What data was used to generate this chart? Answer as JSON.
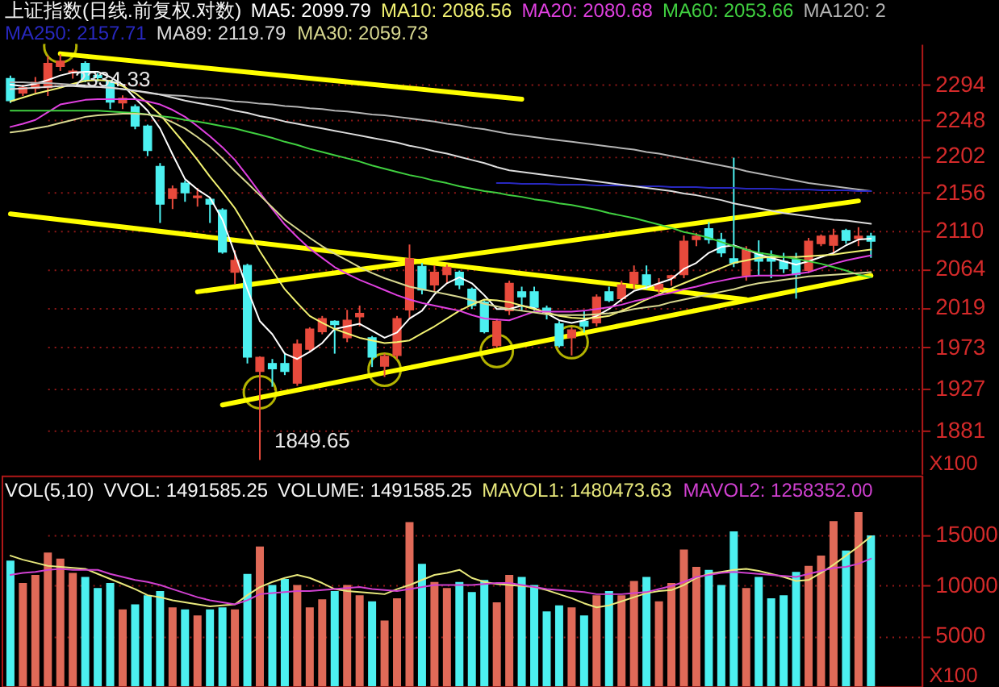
{
  "chart_data": [
    {
      "type": "candlestick",
      "title": "上证指数(日线.前复权.对数)",
      "ylabel": "X100",
      "log": true,
      "grid": "y",
      "legend": "top",
      "tick_labels": "y",
      "ylim": [
        1835,
        2348
      ],
      "yticks": [
        1881,
        1927,
        1973,
        2019,
        2064,
        2110,
        2156,
        2202,
        2248,
        2294
      ],
      "categories": [
        null,
        null,
        null,
        null,
        null,
        null,
        null,
        null,
        null,
        null,
        null,
        null,
        null,
        null,
        null,
        null,
        null,
        null,
        null,
        null,
        null,
        null,
        null,
        null,
        null,
        null,
        null,
        null,
        null,
        null,
        null,
        null,
        null,
        null,
        null,
        null,
        null,
        null,
        null,
        null,
        null,
        null,
        null,
        null,
        null,
        null,
        null,
        null,
        null,
        null,
        null,
        null,
        null,
        null,
        null,
        null,
        null,
        null,
        null,
        null,
        null,
        null,
        null,
        null,
        null,
        null,
        null,
        null,
        null,
        null
      ],
      "ohlc": [
        [
          2302,
          2306,
          2270,
          2273
        ],
        [
          2283,
          2294,
          2279,
          2290
        ],
        [
          2289,
          2304,
          2283,
          2297
        ],
        [
          2290,
          2332,
          2279,
          2322
        ],
        [
          2318,
          2334.33,
          2312,
          2325
        ],
        [
          2310,
          2315,
          2302,
          2312
        ],
        [
          2322,
          2325,
          2297,
          2300
        ],
        [
          2306,
          2309,
          2298,
          2303
        ],
        [
          2298,
          2300,
          2262,
          2271
        ],
        [
          2270,
          2280,
          2262,
          2276
        ],
        [
          2265,
          2268,
          2236,
          2240
        ],
        [
          2240,
          2242,
          2202,
          2209
        ],
        [
          2189,
          2193,
          2119,
          2142
        ],
        [
          2149,
          2165,
          2136,
          2161
        ],
        [
          2168,
          2171,
          2145,
          2156
        ],
        [
          2150,
          2162,
          2139,
          2152
        ],
        [
          2148,
          2150,
          2119,
          2142
        ],
        [
          2135,
          2137,
          2082,
          2084
        ],
        [
          2060,
          2086,
          2046,
          2074
        ],
        [
          2068,
          2070,
          1955,
          1962
        ],
        [
          1946,
          1963,
          1849.65,
          1962
        ],
        [
          1955,
          1960,
          1929,
          1949
        ],
        [
          1955,
          1967,
          1942,
          1946
        ],
        [
          1933,
          1982,
          1930,
          1977
        ],
        [
          1971,
          1996,
          1968,
          1994
        ],
        [
          1991,
          2009,
          1988,
          2006
        ],
        [
          2003,
          2004,
          1966,
          1999
        ],
        [
          1984,
          2016,
          1979,
          2004
        ],
        [
          2008,
          2021,
          1997,
          2012
        ],
        [
          1984,
          1986,
          1951,
          1962
        ],
        [
          1952,
          1966,
          1940,
          1963
        ],
        [
          1964,
          2009,
          1960,
          2006
        ],
        [
          2016,
          2093,
          2006,
          2076
        ],
        [
          2067,
          2071,
          2034,
          2039
        ],
        [
          2045,
          2068,
          2037,
          2060
        ],
        [
          2057,
          2069,
          2047,
          2066
        ],
        [
          2060,
          2062,
          2040,
          2045
        ],
        [
          2040,
          2042,
          2017,
          2021
        ],
        [
          2025,
          2027,
          1989,
          1991
        ],
        [
          1975,
          2006,
          1973,
          2003
        ],
        [
          2015,
          2050,
          2010,
          2047
        ],
        [
          2037,
          2043,
          2015,
          2031
        ],
        [
          2037,
          2043,
          2015,
          2019
        ],
        [
          2018,
          2021,
          2005,
          2013
        ],
        [
          2000,
          2003,
          1973,
          1975
        ],
        [
          1984,
          1996,
          1964,
          1993
        ],
        [
          2003,
          2015,
          1990,
          1997
        ],
        [
          2001,
          2034,
          1997,
          2031
        ],
        [
          2037,
          2043,
          2025,
          2027
        ],
        [
          2029,
          2050,
          2025,
          2045
        ],
        [
          2047,
          2068,
          2040,
          2060
        ],
        [
          2057,
          2068,
          2040,
          2045
        ],
        [
          2040,
          2053,
          2035,
          2046
        ],
        [
          2053,
          2057,
          2044,
          2056
        ],
        [
          2057,
          2104,
          2053,
          2097
        ],
        [
          2099,
          2107,
          2091,
          2103
        ],
        [
          2112,
          2120,
          2094,
          2099
        ],
        [
          2099,
          2107,
          2078,
          2083
        ],
        [
          2076,
          2200,
          2066,
          2071
        ],
        [
          2056,
          2091,
          2050,
          2087
        ],
        [
          2083,
          2098,
          2056,
          2073
        ],
        [
          2079,
          2086,
          2053,
          2073
        ],
        [
          2073,
          2083,
          2059,
          2064
        ],
        [
          2075,
          2083,
          2029,
          2057
        ],
        [
          2062,
          2101,
          2059,
          2097
        ],
        [
          2094,
          2105,
          2091,
          2103
        ],
        [
          2092,
          2112,
          2081,
          2104
        ],
        [
          2110,
          2112,
          2094,
          2098
        ],
        [
          2100,
          2114,
          2091,
          2103
        ],
        [
          2103,
          2107,
          2077,
          2097
        ]
      ],
      "colors": [
        "#4cf0f0",
        "#e84a3c",
        "#e84a3c",
        "#e84a3c",
        "#e84a3c",
        "#e84a3c",
        "#4cf0f0",
        "#4cf0f0",
        "#4cf0f0",
        "#e84a3c",
        "#4cf0f0",
        "#4cf0f0",
        "#4cf0f0",
        "#e84a3c",
        "#4cf0f0",
        "#e84a3c",
        "#4cf0f0",
        "#4cf0f0",
        "#e84a3c",
        "#4cf0f0",
        "#e84a3c",
        "#4cf0f0",
        "#4cf0f0",
        "#e84a3c",
        "#e84a3c",
        "#e84a3c",
        "#4cf0f0",
        "#e84a3c",
        "#e84a3c",
        "#4cf0f0",
        "#e84a3c",
        "#e84a3c",
        "#e84a3c",
        "#4cf0f0",
        "#e84a3c",
        "#e84a3c",
        "#4cf0f0",
        "#4cf0f0",
        "#4cf0f0",
        "#e84a3c",
        "#e84a3c",
        "#4cf0f0",
        "#4cf0f0",
        "#4cf0f0",
        "#4cf0f0",
        "#e84a3c",
        "#4cf0f0",
        "#e84a3c",
        "#4cf0f0",
        "#e84a3c",
        "#e84a3c",
        "#4cf0f0",
        "#e84a3c",
        "#e84a3c",
        "#e84a3c",
        "#e84a3c",
        "#4cf0f0",
        "#4cf0f0",
        "#4cf0f0",
        "#e84a3c",
        "#4cf0f0",
        "#4cf0f0",
        "#4cf0f0",
        "#4cf0f0",
        "#e84a3c",
        "#e84a3c",
        "#e84a3c",
        "#4cf0f0",
        "#e84a3c",
        "#4cf0f0"
      ],
      "value_labels": [
        null,
        null,
        null,
        null,
        "2334.33",
        null,
        null,
        null,
        null,
        null,
        null,
        null,
        null,
        null,
        null,
        null,
        null,
        null,
        null,
        null,
        "1849.65",
        null,
        null,
        null,
        null,
        null,
        null,
        null,
        null,
        null,
        null,
        null,
        null,
        null,
        null,
        null,
        null,
        null,
        null,
        null,
        null,
        null,
        null,
        null,
        null,
        null,
        null,
        null,
        null,
        null,
        null,
        null,
        null,
        null,
        null,
        null,
        null,
        null,
        null,
        null,
        null,
        null,
        null,
        null,
        null,
        null,
        null,
        null,
        null,
        null
      ],
      "series": [
        {
          "name": "MA5: 2099.79",
          "type": "line",
          "color": "#ffffff",
          "values": [
            2294,
            2292,
            2295,
            2300,
            2306,
            2310,
            2311,
            2311,
            2304,
            2294,
            2276,
            2260,
            2237,
            2204,
            2173,
            2160,
            2150,
            2123,
            2082,
            2040,
            2003,
            1988,
            1966,
            1960,
            1968,
            1978,
            1994,
            1997,
            2000,
            1992,
            1984,
            1990,
            2006,
            2015,
            2034,
            2047,
            2054,
            2047,
            2033,
            2017,
            2017,
            2021,
            2018,
            2012,
            2004,
            2001,
            2004,
            2009,
            2017,
            2028,
            2038,
            2042,
            2047,
            2052,
            2064,
            2071,
            2083,
            2090,
            2092,
            2087,
            2081,
            2077,
            2073,
            2069,
            2073,
            2078,
            2083,
            2092,
            2099,
            2100
          ]
        },
        {
          "name": "MA10: 2086.56",
          "type": "line",
          "color": "#f2f272",
          "values": [
            2272,
            2277,
            2282,
            2286,
            2290,
            2295,
            2299,
            2300,
            2299,
            2292,
            2283,
            2270,
            2255,
            2236,
            2217,
            2197,
            2176,
            2157,
            2137,
            2112,
            2085,
            2062,
            2040,
            2024,
            2009,
            2001,
            1994,
            1989,
            1984,
            1981,
            1978,
            1979,
            1981,
            1989,
            1997,
            2006,
            2015,
            2022,
            2028,
            2027,
            2025,
            2021,
            2017,
            2013,
            2009,
            2007,
            2006,
            2007,
            2009,
            2015,
            2021,
            2028,
            2034,
            2041,
            2047,
            2053,
            2059,
            2065,
            2071,
            2074,
            2077,
            2078,
            2078,
            2078,
            2079,
            2080,
            2081,
            2083,
            2085,
            2087
          ]
        },
        {
          "name": "MA20: 2080.68",
          "type": "line",
          "color": "#e040e0",
          "values": [
            2239,
            2243,
            2248,
            2258,
            2268,
            2271,
            2274,
            2275,
            2275,
            2275,
            2275,
            2272,
            2268,
            2261,
            2252,
            2240,
            2227,
            2213,
            2197,
            2177,
            2156,
            2136,
            2117,
            2102,
            2088,
            2077,
            2066,
            2058,
            2051,
            2045,
            2039,
            2033,
            2028,
            2024,
            2021,
            2018,
            2015,
            2010,
            2006,
            2005,
            2004,
            2009,
            2014,
            2014,
            2014,
            2014,
            2015,
            2017,
            2019,
            2022,
            2026,
            2029,
            2033,
            2036,
            2040,
            2043,
            2047,
            2050,
            2053,
            2055,
            2056,
            2056,
            2056,
            2058,
            2060,
            2065,
            2070,
            2074,
            2077,
            2080
          ]
        },
        {
          "name": "MA60: 2053.66",
          "type": "line",
          "color": "#40d040",
          "values": [
            2260,
            2260,
            2260,
            2260,
            2260,
            2260,
            2260,
            2260,
            2259,
            2258,
            2257,
            2255,
            2253,
            2251,
            2248,
            2246,
            2243,
            2240,
            2237,
            2233,
            2229,
            2225,
            2220,
            2216,
            2211,
            2207,
            2203,
            2199,
            2195,
            2190,
            2186,
            2182,
            2178,
            2175,
            2171,
            2168,
            2164,
            2161,
            2158,
            2156,
            2153,
            2151,
            2148,
            2146,
            2143,
            2141,
            2138,
            2135,
            2131,
            2128,
            2125,
            2121,
            2117,
            2113,
            2108,
            2105,
            2101,
            2096,
            2091,
            2087,
            2083,
            2081,
            2078,
            2076,
            2073,
            2070,
            2066,
            2062,
            2057,
            2054
          ]
        },
        {
          "name": "MA120: 2",
          "type": "line",
          "color": "#b4b4b4",
          "values": [
            2297,
            2297,
            2296,
            2296,
            2295,
            2294,
            2293,
            2291,
            2290,
            2288,
            2286,
            2283,
            2281,
            2280,
            2279,
            2277,
            2276,
            2274,
            2272,
            2271,
            2269,
            2268,
            2266,
            2265,
            2263,
            2262,
            2260,
            2259,
            2257,
            2255,
            2254,
            2252,
            2250,
            2248,
            2246,
            2243,
            2241,
            2238,
            2236,
            2233,
            2230,
            2228,
            2226,
            2224,
            2222,
            2220,
            2218,
            2216,
            2214,
            2212,
            2210,
            2207,
            2205,
            2202,
            2199,
            2196,
            2193,
            2190,
            2187,
            2183,
            2180,
            2177,
            2174,
            2171,
            2168,
            2166,
            2164,
            2162,
            2160,
            2158
          ]
        },
        {
          "name": "MA250: 2157.71",
          "type": "line",
          "color": "#2828c0",
          "values": [
            null,
            null,
            null,
            null,
            null,
            null,
            null,
            null,
            null,
            null,
            null,
            null,
            null,
            null,
            null,
            null,
            null,
            null,
            null,
            null,
            null,
            null,
            null,
            null,
            null,
            null,
            null,
            null,
            null,
            null,
            null,
            null,
            null,
            null,
            null,
            null,
            null,
            null,
            null,
            2168,
            2168,
            2167,
            2167,
            2167,
            2166,
            2166,
            2166,
            2165,
            2165,
            2165,
            2164,
            2164,
            2164,
            2163,
            2163,
            2163,
            2162,
            2162,
            2162,
            2161,
            2161,
            2161,
            2160,
            2160,
            2160,
            2159,
            2159,
            2159,
            2158,
            2158
          ]
        },
        {
          "name": "MA89: 2119.79",
          "type": "line",
          "color": "#dcdcdc",
          "values": [
            2288,
            2289,
            2290,
            2291,
            2292,
            2292,
            2291,
            2291,
            2290,
            2288,
            2286,
            2284,
            2281,
            2277,
            2273,
            2270,
            2267,
            2264,
            2260,
            2257,
            2253,
            2250,
            2246,
            2243,
            2240,
            2237,
            2234,
            2231,
            2228,
            2225,
            2222,
            2219,
            2215,
            2212,
            2208,
            2205,
            2201,
            2197,
            2193,
            2188,
            2184,
            2182,
            2180,
            2178,
            2176,
            2174,
            2172,
            2170,
            2168,
            2166,
            2164,
            2162,
            2160,
            2158,
            2155,
            2153,
            2150,
            2147,
            2143,
            2140,
            2137,
            2134,
            2131,
            2129,
            2127,
            2125,
            2123,
            2122,
            2120,
            2118
          ]
        },
        {
          "name": "MA30: 2059.73",
          "type": "line",
          "color": "#d8d890",
          "values": [
            2232,
            2234,
            2237,
            2240,
            2244,
            2248,
            2252,
            2254,
            2255,
            2256,
            2256,
            2255,
            2252,
            2245,
            2237,
            2226,
            2214,
            2199,
            2183,
            2168,
            2153,
            2138,
            2123,
            2112,
            2101,
            2091,
            2082,
            2074,
            2066,
            2059,
            2053,
            2048,
            2043,
            2040,
            2037,
            2034,
            2031,
            2027,
            2023,
            2020,
            2017,
            2015,
            2013,
            2011,
            2010,
            2010,
            2010,
            2011,
            2012,
            2014,
            2017,
            2019,
            2021,
            2025,
            2028,
            2031,
            2034,
            2037,
            2040,
            2044,
            2047,
            2049,
            2051,
            2053,
            2055,
            2056,
            2057,
            2058,
            2059,
            2060
          ]
        },
        {
          "type": "line",
          "color": "#ffff00",
          "values": [
            null,
            null,
            null,
            null,
            2335,
            null,
            null,
            null,
            null,
            null,
            null,
            null,
            null,
            null,
            null,
            null,
            null,
            null,
            null,
            null,
            null,
            null,
            null,
            null,
            null,
            null,
            null,
            null,
            null,
            null,
            null,
            null,
            null,
            null,
            null,
            null,
            null,
            null,
            null,
            null,
            null,
            2275,
            null,
            null,
            null,
            null,
            null,
            null,
            null,
            null,
            null,
            null,
            null,
            null,
            null,
            null,
            null,
            null,
            null,
            null,
            null,
            null,
            null,
            null,
            null,
            null,
            null,
            null,
            null,
            null
          ]
        },
        {
          "type": "line",
          "color": "#ffff00",
          "values": [
            2130,
            null,
            null,
            null,
            null,
            null,
            null,
            null,
            null,
            null,
            null,
            null,
            null,
            null,
            null,
            null,
            null,
            null,
            null,
            null,
            null,
            null,
            null,
            null,
            null,
            null,
            null,
            null,
            null,
            null,
            null,
            null,
            null,
            null,
            null,
            null,
            null,
            null,
            null,
            null,
            null,
            null,
            null,
            null,
            null,
            null,
            null,
            null,
            null,
            null,
            null,
            null,
            null,
            null,
            null,
            null,
            null,
            null,
            null,
            2028,
            null,
            null,
            null,
            null,
            null,
            null,
            null,
            null,
            null,
            null
          ]
        },
        {
          "type": "line",
          "color": "#ffff00",
          "values": [
            null,
            null,
            null,
            null,
            null,
            null,
            null,
            null,
            null,
            null,
            null,
            null,
            null,
            null,
            null,
            2037,
            null,
            null,
            null,
            null,
            null,
            null,
            null,
            null,
            null,
            null,
            null,
            null,
            null,
            null,
            null,
            null,
            null,
            null,
            null,
            null,
            null,
            null,
            null,
            null,
            null,
            null,
            null,
            null,
            null,
            null,
            null,
            null,
            null,
            null,
            null,
            null,
            null,
            null,
            null,
            null,
            null,
            null,
            null,
            null,
            null,
            null,
            null,
            null,
            null,
            null,
            null,
            null,
            2146,
            null
          ]
        },
        {
          "type": "line",
          "color": "#ffff00",
          "values": [
            null,
            null,
            null,
            null,
            null,
            null,
            null,
            null,
            null,
            null,
            null,
            null,
            null,
            null,
            null,
            null,
            null,
            1909,
            null,
            null,
            null,
            null,
            null,
            null,
            null,
            null,
            null,
            null,
            null,
            null,
            null,
            null,
            null,
            null,
            null,
            null,
            null,
            null,
            null,
            null,
            null,
            null,
            null,
            null,
            null,
            null,
            null,
            null,
            null,
            null,
            null,
            null,
            null,
            null,
            null,
            null,
            null,
            null,
            null,
            null,
            null,
            null,
            null,
            null,
            null,
            null,
            null,
            null,
            null,
            2056
          ]
        },
        {
          "type": "scatter",
          "color": "#ffff00",
          "marker": "circle",
          "values": [
            null,
            null,
            null,
            null,
            2345,
            null,
            null,
            null,
            null,
            null,
            null,
            null,
            null,
            null,
            null,
            null,
            null,
            null,
            null,
            null,
            1923,
            null,
            null,
            null,
            null,
            null,
            null,
            null,
            null,
            null,
            1948,
            null,
            null,
            null,
            null,
            null,
            null,
            null,
            null,
            1969,
            null,
            null,
            null,
            null,
            null,
            1979,
            null,
            null,
            null,
            null,
            null,
            null,
            null,
            null,
            null,
            null,
            null,
            null,
            null,
            null,
            null,
            null,
            null,
            null,
            null,
            null,
            null,
            null,
            null,
            null
          ]
        }
      ]
    },
    {
      "type": "bar",
      "title": "VOL(5,10)",
      "annotations": [
        "VVOL: 1491585.25",
        "VOLUME: 1491585.25"
      ],
      "ylabel": "X100",
      "grid": "y",
      "legend": "top right",
      "tick_labels": "y",
      "ylim": [
        0,
        20800
      ],
      "yticks": [
        5000,
        10000,
        15000
      ],
      "categories": [
        null,
        null,
        null,
        null,
        null,
        null,
        null,
        null,
        null,
        null,
        null,
        null,
        null,
        null,
        null,
        null,
        null,
        null,
        null,
        null,
        null,
        null,
        null,
        null,
        null,
        null,
        null,
        null,
        null,
        null,
        null,
        null,
        null,
        null,
        null,
        null,
        null,
        null,
        null,
        null,
        null,
        null,
        null,
        null,
        null,
        null,
        null,
        null,
        null,
        null,
        null,
        null,
        null,
        null,
        null,
        null,
        null,
        null,
        null,
        null,
        null,
        null,
        null,
        null,
        null,
        null,
        null,
        null,
        null,
        null
      ],
      "series": [
        {
          "type": "bar",
          "colors": [
            "#4cf0f0",
            "#e06a58",
            "#e06a58",
            "#e06a58",
            "#e06a58",
            "#e06a58",
            "#4cf0f0",
            "#4cf0f0",
            "#4cf0f0",
            "#e06a58",
            "#4cf0f0",
            "#4cf0f0",
            "#4cf0f0",
            "#e06a58",
            "#4cf0f0",
            "#e06a58",
            "#4cf0f0",
            "#4cf0f0",
            "#e06a58",
            "#4cf0f0",
            "#e06a58",
            "#4cf0f0",
            "#4cf0f0",
            "#e06a58",
            "#e06a58",
            "#e06a58",
            "#4cf0f0",
            "#e06a58",
            "#e06a58",
            "#4cf0f0",
            "#e06a58",
            "#e06a58",
            "#e06a58",
            "#4cf0f0",
            "#e06a58",
            "#e06a58",
            "#4cf0f0",
            "#4cf0f0",
            "#4cf0f0",
            "#e06a58",
            "#e06a58",
            "#4cf0f0",
            "#4cf0f0",
            "#4cf0f0",
            "#4cf0f0",
            "#e06a58",
            "#4cf0f0",
            "#e06a58",
            "#4cf0f0",
            "#e06a58",
            "#e06a58",
            "#4cf0f0",
            "#e06a58",
            "#e06a58",
            "#e06a58",
            "#e06a58",
            "#4cf0f0",
            "#4cf0f0",
            "#4cf0f0",
            "#e06a58",
            "#4cf0f0",
            "#4cf0f0",
            "#4cf0f0",
            "#4cf0f0",
            "#e06a58",
            "#e06a58",
            "#e06a58",
            "#4cf0f0",
            "#e06a58",
            "#4cf0f0"
          ],
          "values": [
            12400,
            10200,
            11000,
            13200,
            12600,
            11200,
            10800,
            9700,
            10200,
            7600,
            8100,
            9000,
            9400,
            7800,
            7600,
            7000,
            7600,
            7800,
            7600,
            11100,
            13800,
            10000,
            10600,
            10000,
            7800,
            8600,
            9400,
            10000,
            9000,
            8400,
            6500,
            8700,
            16200,
            12100,
            10300,
            9700,
            10300,
            9300,
            10500,
            8300,
            11000,
            10800,
            10000,
            7400,
            8000,
            7800,
            7000,
            9000,
            9400,
            9000,
            10400,
            10800,
            8400,
            10200,
            13500,
            11800,
            11500,
            10000,
            15300,
            9700,
            10800,
            8700,
            9000,
            11300,
            11900,
            12900,
            16300,
            13400,
            17200,
            14900
          ]
        },
        {
          "name": "MAVOL1: 1480473.63",
          "type": "line",
          "color": "#e8e87c",
          "values": [
            12900,
            12500,
            12200,
            11900,
            11800,
            11700,
            11600,
            11100,
            10600,
            10100,
            9600,
            9000,
            8800,
            8500,
            8300,
            8100,
            7900,
            8000,
            8100,
            9000,
            9800,
            10300,
            10700,
            11000,
            10700,
            10200,
            9600,
            9400,
            9300,
            9200,
            9100,
            9600,
            10000,
            10500,
            11000,
            11200,
            11500,
            10700,
            10300,
            10100,
            10000,
            9900,
            9800,
            9500,
            9100,
            8700,
            8200,
            7800,
            8000,
            8400,
            8800,
            9200,
            9400,
            9500,
            10000,
            10700,
            11100,
            11300,
            11500,
            11600,
            11400,
            11100,
            10800,
            10400,
            10500,
            11200,
            12000,
            12900,
            13800,
            14800
          ]
        },
        {
          "name": "MAVOL2: 1258352.00",
          "type": "line",
          "color": "#d040d0",
          "values": [
            11000,
            11200,
            11300,
            11500,
            11600,
            11500,
            11500,
            11500,
            11100,
            10800,
            10500,
            10300,
            10000,
            9600,
            9200,
            8800,
            8500,
            8300,
            8100,
            8500,
            9100,
            9200,
            9300,
            9400,
            9400,
            9500,
            9600,
            9700,
            9800,
            9600,
            9500,
            9400,
            9600,
            9800,
            10000,
            10000,
            10000,
            10000,
            10100,
            10200,
            10200,
            10000,
            9800,
            9600,
            9500,
            9400,
            9300,
            9100,
            9100,
            9100,
            9200,
            9300,
            9600,
            9900,
            10300,
            10800,
            11000,
            11200,
            11300,
            11200,
            11100,
            11000,
            10900,
            10800,
            11100,
            11400,
            11700,
            11800,
            12100,
            12600
          ]
        }
      ]
    }
  ]
}
